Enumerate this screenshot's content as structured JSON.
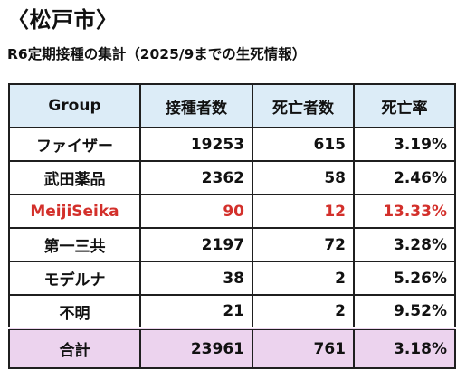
{
  "title": "〈松戸市〉",
  "subtitle": "R6定期接種の集計（2025/9までの生死情報）",
  "table": {
    "headers": [
      "Group",
      "接種者数",
      "死亡者数",
      "死亡率"
    ],
    "rows": [
      {
        "group": "ファイザー",
        "vaccinated": "19253",
        "deaths": "615",
        "rate": "3.19%"
      },
      {
        "group": "武田薬品",
        "vaccinated": "2362",
        "deaths": "58",
        "rate": "2.46%"
      },
      {
        "group": "MeijiSeika",
        "vaccinated": "90",
        "deaths": "12",
        "rate": "13.33%"
      },
      {
        "group": "第一三共",
        "vaccinated": "2197",
        "deaths": "72",
        "rate": "3.28%"
      },
      {
        "group": "モデルナ",
        "vaccinated": "38",
        "deaths": "2",
        "rate": "5.26%"
      },
      {
        "group": "不明",
        "vaccinated": "21",
        "deaths": "2",
        "rate": "9.52%"
      }
    ],
    "total": {
      "group": "合計",
      "vaccinated": "23961",
      "deaths": "761",
      "rate": "3.18%"
    }
  },
  "colors": {
    "header_bg": "#dcecf7",
    "total_bg": "#ecd3ee",
    "highlight_text": "#d3302b"
  }
}
